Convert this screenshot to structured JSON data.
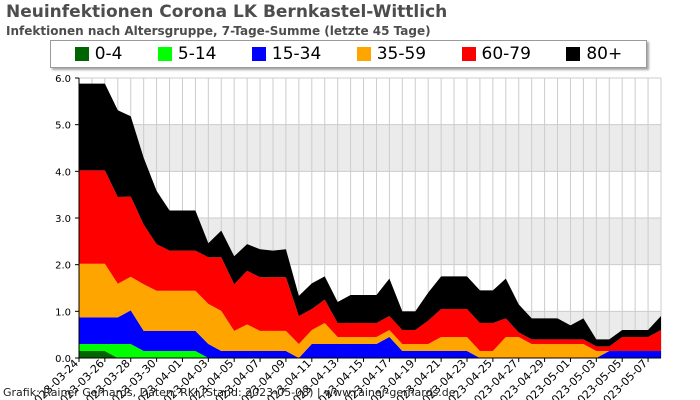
{
  "title": "Neuinfektionen Corona LK Bernkastel-Wittlich",
  "subtitle": "Infektionen nach Altersgruppe, 7-Tage-Summe (letzte 45 Tage)",
  "credit": "Grafik: Rainer Gerhards, Daten: RKI (Stand: 2023-05-08) | www.rainer-gerhards.de",
  "colors": {
    "bg_band": "#ebebeb",
    "grid_minor": "#cccccc",
    "axis": "#000000"
  },
  "chart_data": {
    "type": "area",
    "stacked": true,
    "title": "Neuinfektionen Corona LK Bernkastel-Wittlich",
    "subtitle": "Infektionen nach Altersgruppe, 7-Tage-Summe (letzte 45 Tage)",
    "xlabel": "",
    "ylabel": "",
    "ylim": [
      0,
      6
    ],
    "yticks": [
      "0.0",
      "1.0",
      "2.0",
      "3.0",
      "4.0",
      "5.0",
      "6.0"
    ],
    "legend_position": "top",
    "x": [
      "2023-03-24",
      "2023-03-25",
      "2023-03-26",
      "2023-03-27",
      "2023-03-28",
      "2023-03-29",
      "2023-03-30",
      "2023-03-31",
      "2023-04-01",
      "2023-04-02",
      "2023-04-03",
      "2023-04-04",
      "2023-04-05",
      "2023-04-06",
      "2023-04-07",
      "2023-04-08",
      "2023-04-09",
      "2023-04-10",
      "2023-04-11",
      "2023-04-12",
      "2023-04-13",
      "2023-04-14",
      "2023-04-15",
      "2023-04-16",
      "2023-04-17",
      "2023-04-18",
      "2023-04-19",
      "2023-04-20",
      "2023-04-21",
      "2023-04-22",
      "2023-04-23",
      "2023-04-24",
      "2023-04-25",
      "2023-04-26",
      "2023-04-27",
      "2023-04-28",
      "2023-04-29",
      "2023-04-30",
      "2023-05-01",
      "2023-05-02",
      "2023-05-03",
      "2023-05-04",
      "2023-05-05",
      "2023-05-06",
      "2023-05-07",
      "2023-05-08"
    ],
    "xtick_labels": [
      "2023-03-24",
      "2023-03-26",
      "2023-03-28",
      "2023-03-30",
      "2023-04-01",
      "2023-04-03",
      "2023-04-05",
      "2023-04-07",
      "2023-04-09",
      "2023-04-11",
      "2023-04-13",
      "2023-04-15",
      "2023-04-17",
      "2023-04-19",
      "2023-04-21",
      "2023-04-23",
      "2023-04-25",
      "2023-04-27",
      "2023-04-29",
      "2023-05-01",
      "2023-05-03",
      "2023-05-05",
      "2023-05-07"
    ],
    "series": [
      {
        "name": "0-4",
        "color": "#006400",
        "values": [
          0.15,
          0.15,
          0.15,
          0,
          0,
          0,
          0,
          0,
          0,
          0,
          0,
          0,
          0,
          0,
          0,
          0,
          0,
          0,
          0,
          0,
          0,
          0,
          0,
          0,
          0,
          0,
          0,
          0,
          0,
          0,
          0,
          0,
          0,
          0,
          0,
          0,
          0,
          0,
          0,
          0,
          0,
          0,
          0,
          0,
          0,
          0
        ]
      },
      {
        "name": "5-14",
        "color": "#00ff00",
        "values": [
          0.15,
          0.15,
          0.15,
          0.3,
          0.3,
          0.15,
          0.15,
          0.15,
          0.15,
          0.15,
          0,
          0,
          0,
          0,
          0,
          0,
          0,
          0,
          0,
          0,
          0,
          0,
          0,
          0,
          0,
          0,
          0,
          0,
          0,
          0,
          0,
          0,
          0,
          0,
          0,
          0,
          0,
          0,
          0,
          0,
          0,
          0,
          0,
          0,
          0,
          0
        ]
      },
      {
        "name": "15-34",
        "color": "#0000ff",
        "values": [
          0.57,
          0.57,
          0.57,
          0.57,
          0.72,
          0.43,
          0.43,
          0.43,
          0.43,
          0.43,
          0.3,
          0.15,
          0.15,
          0.15,
          0.15,
          0.15,
          0.15,
          0,
          0.3,
          0.3,
          0.3,
          0.3,
          0.3,
          0.3,
          0.45,
          0.15,
          0.15,
          0.15,
          0.15,
          0.15,
          0.15,
          0,
          0,
          0,
          0,
          0,
          0,
          0,
          0,
          0,
          0,
          0.15,
          0.15,
          0.15,
          0.15,
          0.15
        ]
      },
      {
        "name": "35-59",
        "color": "#ffa500",
        "values": [
          1.15,
          1.15,
          1.15,
          0.72,
          0.72,
          1.0,
          0.86,
          0.86,
          0.86,
          0.86,
          0.86,
          0.86,
          0.43,
          0.57,
          0.43,
          0.43,
          0.43,
          0.3,
          0.3,
          0.45,
          0.15,
          0.15,
          0.15,
          0.15,
          0.15,
          0.15,
          0.15,
          0.15,
          0.3,
          0.3,
          0.3,
          0.15,
          0.15,
          0.45,
          0.45,
          0.3,
          0.3,
          0.3,
          0.3,
          0.3,
          0.15,
          0,
          0,
          0,
          0,
          0
        ]
      },
      {
        "name": "60-79",
        "color": "#ff0000",
        "values": [
          2.0,
          2.0,
          2.0,
          1.86,
          1.72,
          1.28,
          1.0,
          0.86,
          0.86,
          0.86,
          1.0,
          1.15,
          1.0,
          1.15,
          1.15,
          1.15,
          1.15,
          0.6,
          0.45,
          0.5,
          0.3,
          0.3,
          0.3,
          0.3,
          0.3,
          0.3,
          0.3,
          0.5,
          0.6,
          0.6,
          0.6,
          0.6,
          0.6,
          0.4,
          0.1,
          0.1,
          0.1,
          0.1,
          0.1,
          0.1,
          0.1,
          0.1,
          0.3,
          0.3,
          0.3,
          0.45
        ]
      },
      {
        "name": "80+",
        "color": "#000000",
        "values": [
          1.86,
          1.86,
          1.86,
          1.86,
          1.72,
          1.43,
          1.14,
          0.86,
          0.86,
          0.86,
          0.3,
          0.57,
          0.6,
          0.57,
          0.6,
          0.57,
          0.6,
          0.43,
          0.55,
          0.5,
          0.45,
          0.6,
          0.6,
          0.6,
          0.8,
          0.4,
          0.4,
          0.6,
          0.7,
          0.7,
          0.7,
          0.7,
          0.7,
          0.85,
          0.6,
          0.45,
          0.45,
          0.45,
          0.3,
          0.45,
          0.15,
          0.15,
          0.15,
          0.15,
          0.15,
          0.3
        ]
      }
    ]
  }
}
